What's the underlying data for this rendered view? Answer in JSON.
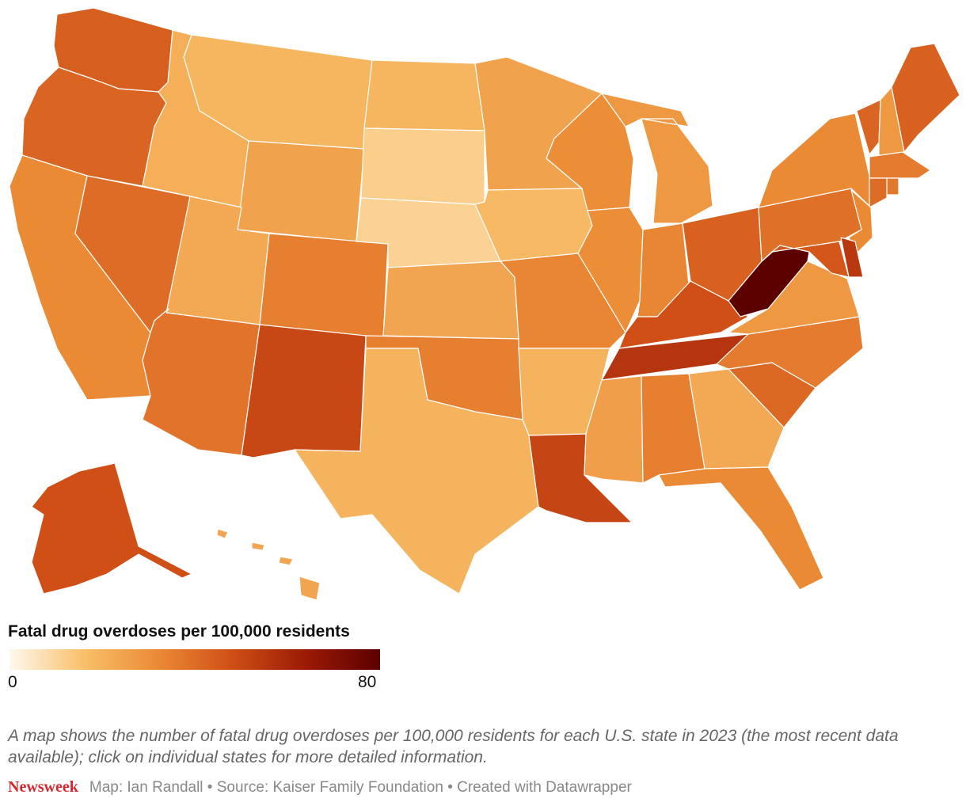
{
  "legend": {
    "title": "Fatal drug overdoses per 100,000 residents",
    "min_label": "0",
    "max_label": "80",
    "min": 0,
    "max": 80,
    "gradient": [
      "#fff8ee",
      "#f9c06a",
      "#eb8a35",
      "#cf4f17",
      "#9a1a05",
      "#5c0000"
    ]
  },
  "description": "A map shows the number of fatal drug overdoses per 100,000 residents for each U.S. state in 2023 (the most recent data available); click on individual states for more detailed information.",
  "footer": {
    "brand": "Newsweek",
    "credits": "Map: Ian Randall • Source: Kaiser Family Foundation • Created with Datawrapper"
  },
  "states": [
    {
      "name": "Washington",
      "value": 44
    },
    {
      "name": "Oregon",
      "value": 42
    },
    {
      "name": "California",
      "value": 32
    },
    {
      "name": "Nevada",
      "value": 40
    },
    {
      "name": "Idaho",
      "value": 21
    },
    {
      "name": "Montana",
      "value": 19
    },
    {
      "name": "Wyoming",
      "value": 25
    },
    {
      "name": "Utah",
      "value": 23
    },
    {
      "name": "Arizona",
      "value": 38
    },
    {
      "name": "Colorado",
      "value": 35
    },
    {
      "name": "New Mexico",
      "value": 50
    },
    {
      "name": "North Dakota",
      "value": 19
    },
    {
      "name": "South Dakota",
      "value": 12
    },
    {
      "name": "Nebraska",
      "value": 11
    },
    {
      "name": "Kansas",
      "value": 24
    },
    {
      "name": "Oklahoma",
      "value": 35
    },
    {
      "name": "Texas",
      "value": 20
    },
    {
      "name": "Minnesota",
      "value": 25
    },
    {
      "name": "Iowa",
      "value": 18
    },
    {
      "name": "Missouri",
      "value": 33
    },
    {
      "name": "Arkansas",
      "value": 20
    },
    {
      "name": "Louisiana",
      "value": 51
    },
    {
      "name": "Wisconsin",
      "value": 31
    },
    {
      "name": "Illinois",
      "value": 31
    },
    {
      "name": "Michigan",
      "value": 28
    },
    {
      "name": "Indiana",
      "value": 33
    },
    {
      "name": "Ohio",
      "value": 43
    },
    {
      "name": "Kentucky",
      "value": 48
    },
    {
      "name": "Tennessee",
      "value": 56
    },
    {
      "name": "Mississippi",
      "value": 26
    },
    {
      "name": "Alabama",
      "value": 35
    },
    {
      "name": "Georgia",
      "value": 23
    },
    {
      "name": "Florida",
      "value": 32
    },
    {
      "name": "South Carolina",
      "value": 41
    },
    {
      "name": "North Carolina",
      "value": 36
    },
    {
      "name": "Virginia",
      "value": 28
    },
    {
      "name": "West Virginia",
      "value": 81
    },
    {
      "name": "Pennsylvania",
      "value": 39
    },
    {
      "name": "New York",
      "value": 32
    },
    {
      "name": "Vermont",
      "value": 42
    },
    {
      "name": "New Hampshire",
      "value": 28
    },
    {
      "name": "Maine",
      "value": 43
    },
    {
      "name": "Massachusetts",
      "value": 36
    },
    {
      "name": "Rhode Island",
      "value": 37
    },
    {
      "name": "Connecticut",
      "value": 40
    },
    {
      "name": "New Jersey",
      "value": 32
    },
    {
      "name": "Delaware",
      "value": 55
    },
    {
      "name": "Maryland",
      "value": 46
    },
    {
      "name": "Alaska",
      "value": 48
    },
    {
      "name": "Hawaii",
      "value": 24
    }
  ]
}
